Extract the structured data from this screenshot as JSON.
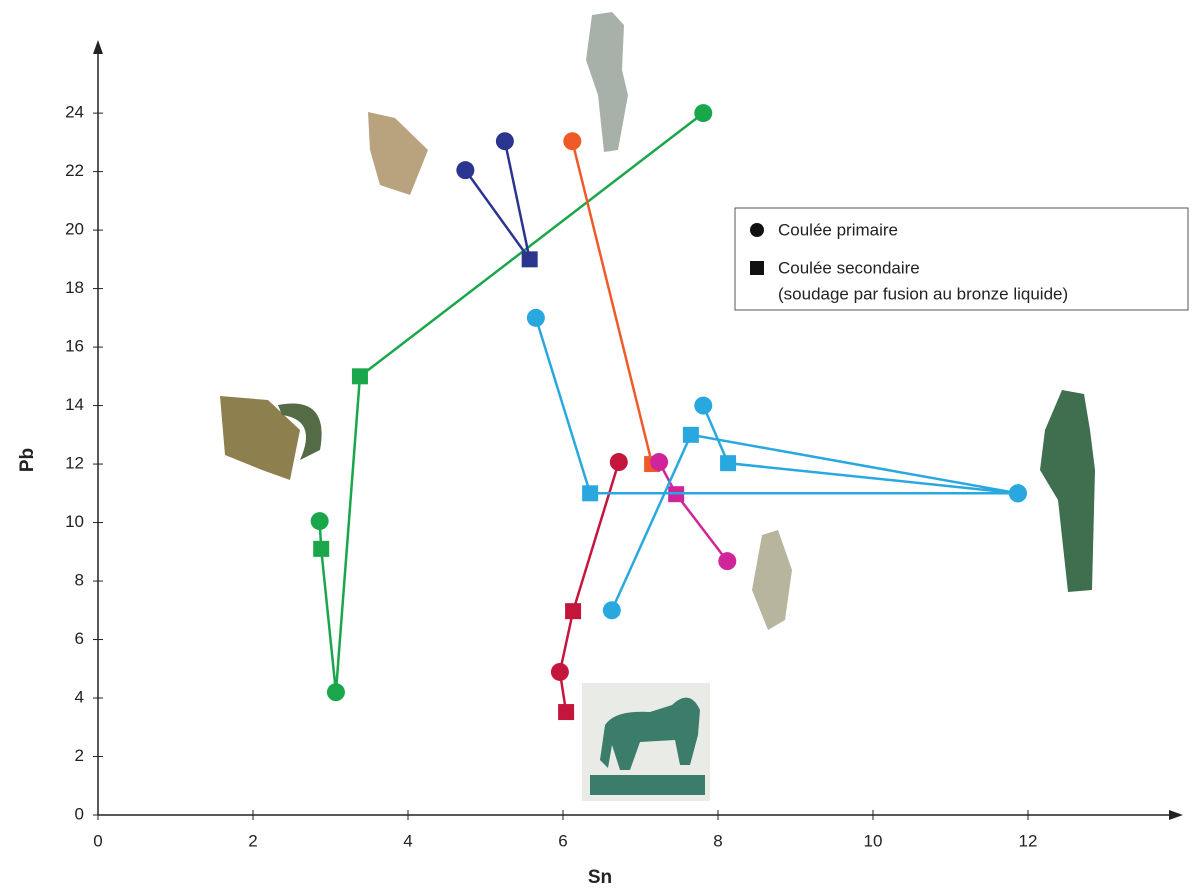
{
  "chart_data": {
    "type": "line",
    "x_label": "Sn",
    "y_label": "Pb",
    "xlim": [
      0,
      14
    ],
    "ylim": [
      0,
      26.5
    ],
    "xticks": [
      0,
      2,
      4,
      6,
      8,
      10,
      12
    ],
    "yticks": [
      0,
      2,
      4,
      6,
      8,
      10,
      12,
      14,
      16,
      18,
      20,
      22,
      24
    ],
    "series": [
      {
        "color": "#1aa64a",
        "x": [
          7.81,
          3.38,
          3.07,
          2.88,
          2.86
        ],
        "values": [
          24,
          15,
          4.2,
          9.1,
          10.05
        ],
        "markers": [
          "circle",
          "square",
          "circle",
          "square",
          "circle"
        ]
      },
      {
        "color": "#2b3590",
        "x": [
          4.74,
          5.57,
          5.25
        ],
        "values": [
          22.05,
          19,
          23.04
        ],
        "markers": [
          "circle",
          "square",
          "circle"
        ]
      },
      {
        "color": "#f05a28",
        "x": [
          6.12,
          7.15
        ],
        "values": [
          23.04,
          12
        ],
        "markers": [
          "circle",
          "square"
        ]
      },
      {
        "color": "#c4163c",
        "x": [
          6.72,
          6.13,
          5.96,
          6.04
        ],
        "values": [
          12.07,
          6.97,
          4.89,
          3.52
        ],
        "markers": [
          "circle",
          "square",
          "circle",
          "square"
        ]
      },
      {
        "color": "#d0259a",
        "x": [
          7.24,
          7.46,
          8.12
        ],
        "values": [
          12.07,
          10.97,
          8.68
        ],
        "markers": [
          "circle",
          "square",
          "circle"
        ]
      },
      {
        "color": "#29a8e0",
        "x": [
          5.65,
          6.35,
          11.87,
          null,
          6.63,
          7.65,
          11.87,
          null,
          7.81,
          8.13,
          11.87
        ],
        "values": [
          17,
          11,
          11,
          null,
          7,
          13,
          11,
          null,
          14,
          12.03,
          11
        ],
        "markers": [
          "circle",
          "square",
          "circle",
          null,
          "circle",
          "square",
          "circle",
          null,
          "circle",
          "square",
          "circle"
        ]
      }
    ],
    "legend": {
      "items": [
        {
          "marker": "circle",
          "label": "Coulée primaire"
        },
        {
          "marker": "square",
          "label": "Coulée secondaire",
          "note": "(soudage par fusion au bronze liquide)"
        }
      ]
    }
  }
}
